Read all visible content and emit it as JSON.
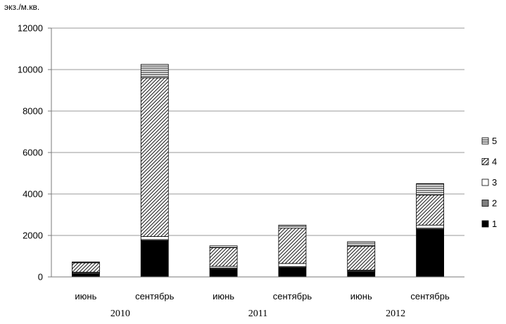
{
  "chart_data": {
    "type": "bar",
    "stacked": true,
    "title": "",
    "ylabel": "экз./м.кв.",
    "xlabel": "",
    "ylim": [
      0,
      12000
    ],
    "yticks": [
      0,
      2000,
      4000,
      6000,
      8000,
      10000,
      12000
    ],
    "grid": true,
    "legend_position": "right",
    "categories": [
      "июнь",
      "сентябрь",
      "июнь",
      "сентябрь",
      "июнь",
      "сентябрь"
    ],
    "groups": [
      {
        "label": "2010",
        "categories": [
          0,
          1
        ]
      },
      {
        "label": "2011",
        "categories": [
          2,
          3
        ]
      },
      {
        "label": "2012",
        "categories": [
          4,
          5
        ]
      }
    ],
    "series": [
      {
        "name": "1",
        "fill": "solid-black",
        "values": [
          150,
          1750,
          380,
          450,
          250,
          2300
        ]
      },
      {
        "name": "2",
        "fill": "solid-gray",
        "values": [
          50,
          50,
          50,
          50,
          50,
          50
        ]
      },
      {
        "name": "3",
        "fill": "white",
        "values": [
          30,
          150,
          80,
          150,
          30,
          150
        ]
      },
      {
        "name": "4",
        "fill": "diagonal-hatch",
        "values": [
          450,
          7650,
          900,
          1700,
          1150,
          1450
        ]
      },
      {
        "name": "5",
        "fill": "horizontal-hatch",
        "values": [
          40,
          650,
          90,
          150,
          220,
          550
        ]
      }
    ]
  }
}
